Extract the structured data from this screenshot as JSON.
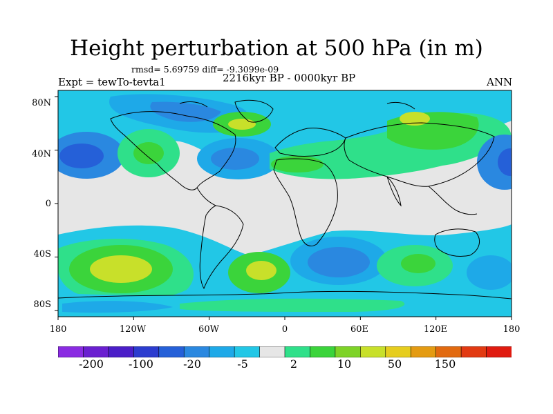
{
  "title": "Height perturbation at 500 hPa (in m)",
  "stats": "rmsd= 5.69759 diff= -9.3099e-09",
  "subtitle_left": "Expt = tewTo-tevta1",
  "subtitle_center": "2216kyr BP - 0000kyr BP",
  "subtitle_right": "ANN",
  "lat_ticks": [
    "80N",
    "40N",
    "0",
    "40S",
    "80S"
  ],
  "lon_ticks": [
    "180",
    "120W",
    "60W",
    "0",
    "60E",
    "120E",
    "180"
  ],
  "colorbar": {
    "colors": [
      "#8a2be2",
      "#6a1fd0",
      "#4b1ec8",
      "#2c3ccf",
      "#2560d8",
      "#2a88e0",
      "#1ea9e8",
      "#22c7e6",
      "#e6e6e6",
      "#2fe08a",
      "#3bd43b",
      "#7ed327",
      "#c8e02a",
      "#e6cd1e",
      "#e49b12",
      "#e26a10",
      "#e23a12",
      "#e01b10"
    ],
    "labels": [
      "-200",
      "-100",
      "-20",
      "-5",
      "2",
      "10",
      "50",
      "150"
    ]
  },
  "palette": {
    "neutral": "#e6e6e6",
    "lightblue": "#22c7e6",
    "midblue": "#1ea9e8",
    "blue": "#2a88e0",
    "darkblue": "#2560d8",
    "green": "#2fe08a",
    "lime": "#3bd43b",
    "yellowgreen": "#c8e02a"
  }
}
